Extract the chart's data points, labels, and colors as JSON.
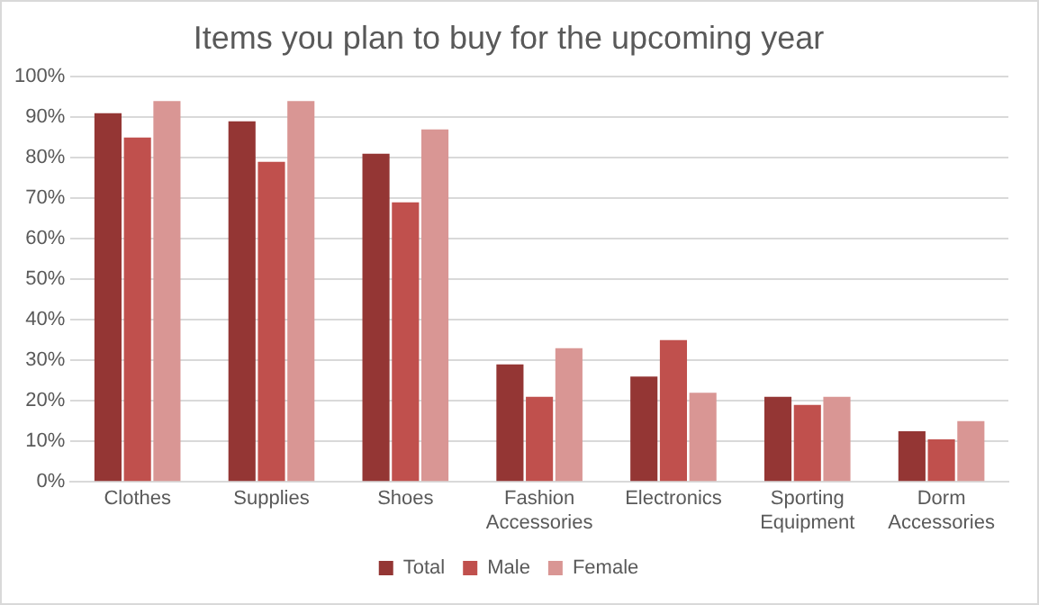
{
  "chart_data": {
    "type": "bar",
    "title": "Items you plan to buy for the upcoming year",
    "categories": [
      "Clothes",
      "Supplies",
      "Shoes",
      "Fashion Accessories",
      "Electronics",
      "Sporting Equipment",
      "Dorm Accessories"
    ],
    "series": [
      {
        "name": "Total",
        "color": "#943634",
        "values": [
          91,
          89,
          81,
          29,
          26,
          21,
          12.5
        ]
      },
      {
        "name": "Male",
        "color": "#c0504d",
        "values": [
          85,
          79,
          69,
          21,
          35,
          19,
          10.5
        ]
      },
      {
        "name": "Female",
        "color": "#d99694",
        "values": [
          94,
          94,
          87,
          33,
          22,
          21,
          15
        ]
      }
    ],
    "ylim": [
      0,
      100
    ],
    "yticks": [
      {
        "value": 0,
        "label": "0%"
      },
      {
        "value": 10,
        "label": "10%"
      },
      {
        "value": 20,
        "label": "20%"
      },
      {
        "value": 30,
        "label": "30%"
      },
      {
        "value": 40,
        "label": "40%"
      },
      {
        "value": 50,
        "label": "50%"
      },
      {
        "value": 60,
        "label": "60%"
      },
      {
        "value": 70,
        "label": "70%"
      },
      {
        "value": 80,
        "label": "80%"
      },
      {
        "value": 90,
        "label": "90%"
      },
      {
        "value": 100,
        "label": "100%"
      }
    ],
    "grid": "y",
    "legend": "bottom"
  }
}
